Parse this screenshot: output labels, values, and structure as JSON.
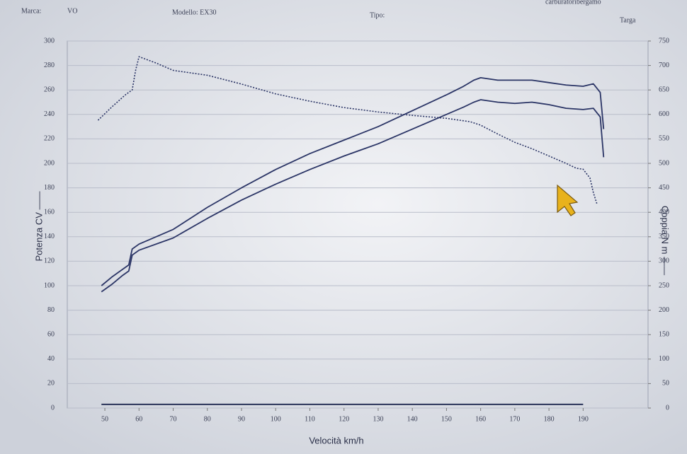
{
  "chart_data": {
    "type": "line",
    "annotations": [
      "Marca:",
      "VO",
      "Modello: EX30",
      "Tipo:",
      "Targa",
      "carburatoribergamo"
    ],
    "ylabel": "Potenza CV ——",
    "y2label": "Coppia N m ——",
    "xlabel": "Velocità km/h",
    "xlim": [
      39,
      209
    ],
    "xticks": [
      50,
      60,
      70,
      80,
      90,
      100,
      110,
      120,
      130,
      140,
      150,
      160,
      170,
      180,
      190
    ],
    "ylim": [
      0,
      300
    ],
    "yticks": [
      0,
      20,
      40,
      60,
      80,
      100,
      120,
      140,
      160,
      180,
      200,
      220,
      240,
      260,
      280,
      300
    ],
    "y2lim": [
      0,
      750
    ],
    "y2ticks": [
      0,
      50,
      100,
      150,
      200,
      250,
      300,
      350,
      400,
      450,
      500,
      550,
      600,
      650,
      700,
      750
    ],
    "grid": true,
    "series": [
      {
        "color": "#2b3566",
        "line_style": "solid",
        "axis": "y",
        "x": [
          49,
          52,
          55,
          57,
          58,
          60,
          70,
          80,
          90,
          100,
          110,
          120,
          130,
          140,
          150,
          155,
          158,
          160,
          165,
          170,
          175,
          180,
          185,
          190,
          193,
          195,
          196
        ],
        "values": [
          100,
          107,
          113,
          117,
          130,
          134,
          146,
          164,
          180,
          195,
          208,
          219,
          230,
          243,
          256,
          263,
          268,
          270,
          268,
          268,
          268,
          266,
          264,
          263,
          265,
          258,
          228
        ]
      },
      {
        "color": "#2b3566",
        "line_style": "solid",
        "axis": "y",
        "x": [
          49,
          52,
          55,
          57,
          58,
          60,
          70,
          80,
          90,
          100,
          110,
          120,
          130,
          140,
          150,
          155,
          158,
          160,
          165,
          170,
          175,
          180,
          185,
          190,
          193,
          195,
          196
        ],
        "values": [
          95,
          101,
          108,
          112,
          125,
          129,
          139,
          155,
          170,
          183,
          195,
          206,
          216,
          228,
          240,
          246,
          250,
          252,
          250,
          249,
          250,
          248,
          245,
          244,
          245,
          238,
          205
        ]
      },
      {
        "color": "#2b3566",
        "line_style": "dotted",
        "axis": "y2",
        "x": [
          48,
          52,
          56,
          58,
          59,
          60,
          65,
          70,
          80,
          90,
          100,
          110,
          120,
          130,
          140,
          150,
          157,
          160,
          165,
          170,
          175,
          180,
          185,
          188,
          190,
          192,
          193,
          194
        ],
        "values": [
          588,
          615,
          640,
          650,
          690,
          718,
          705,
          690,
          680,
          662,
          642,
          627,
          614,
          605,
          598,
          592,
          585,
          578,
          560,
          543,
          530,
          515,
          500,
          490,
          488,
          470,
          440,
          418
        ]
      },
      {
        "color": "#1e2850",
        "line_style": "solid",
        "axis": "y",
        "x": [
          49,
          190
        ],
        "values": [
          3,
          3
        ]
      }
    ]
  }
}
